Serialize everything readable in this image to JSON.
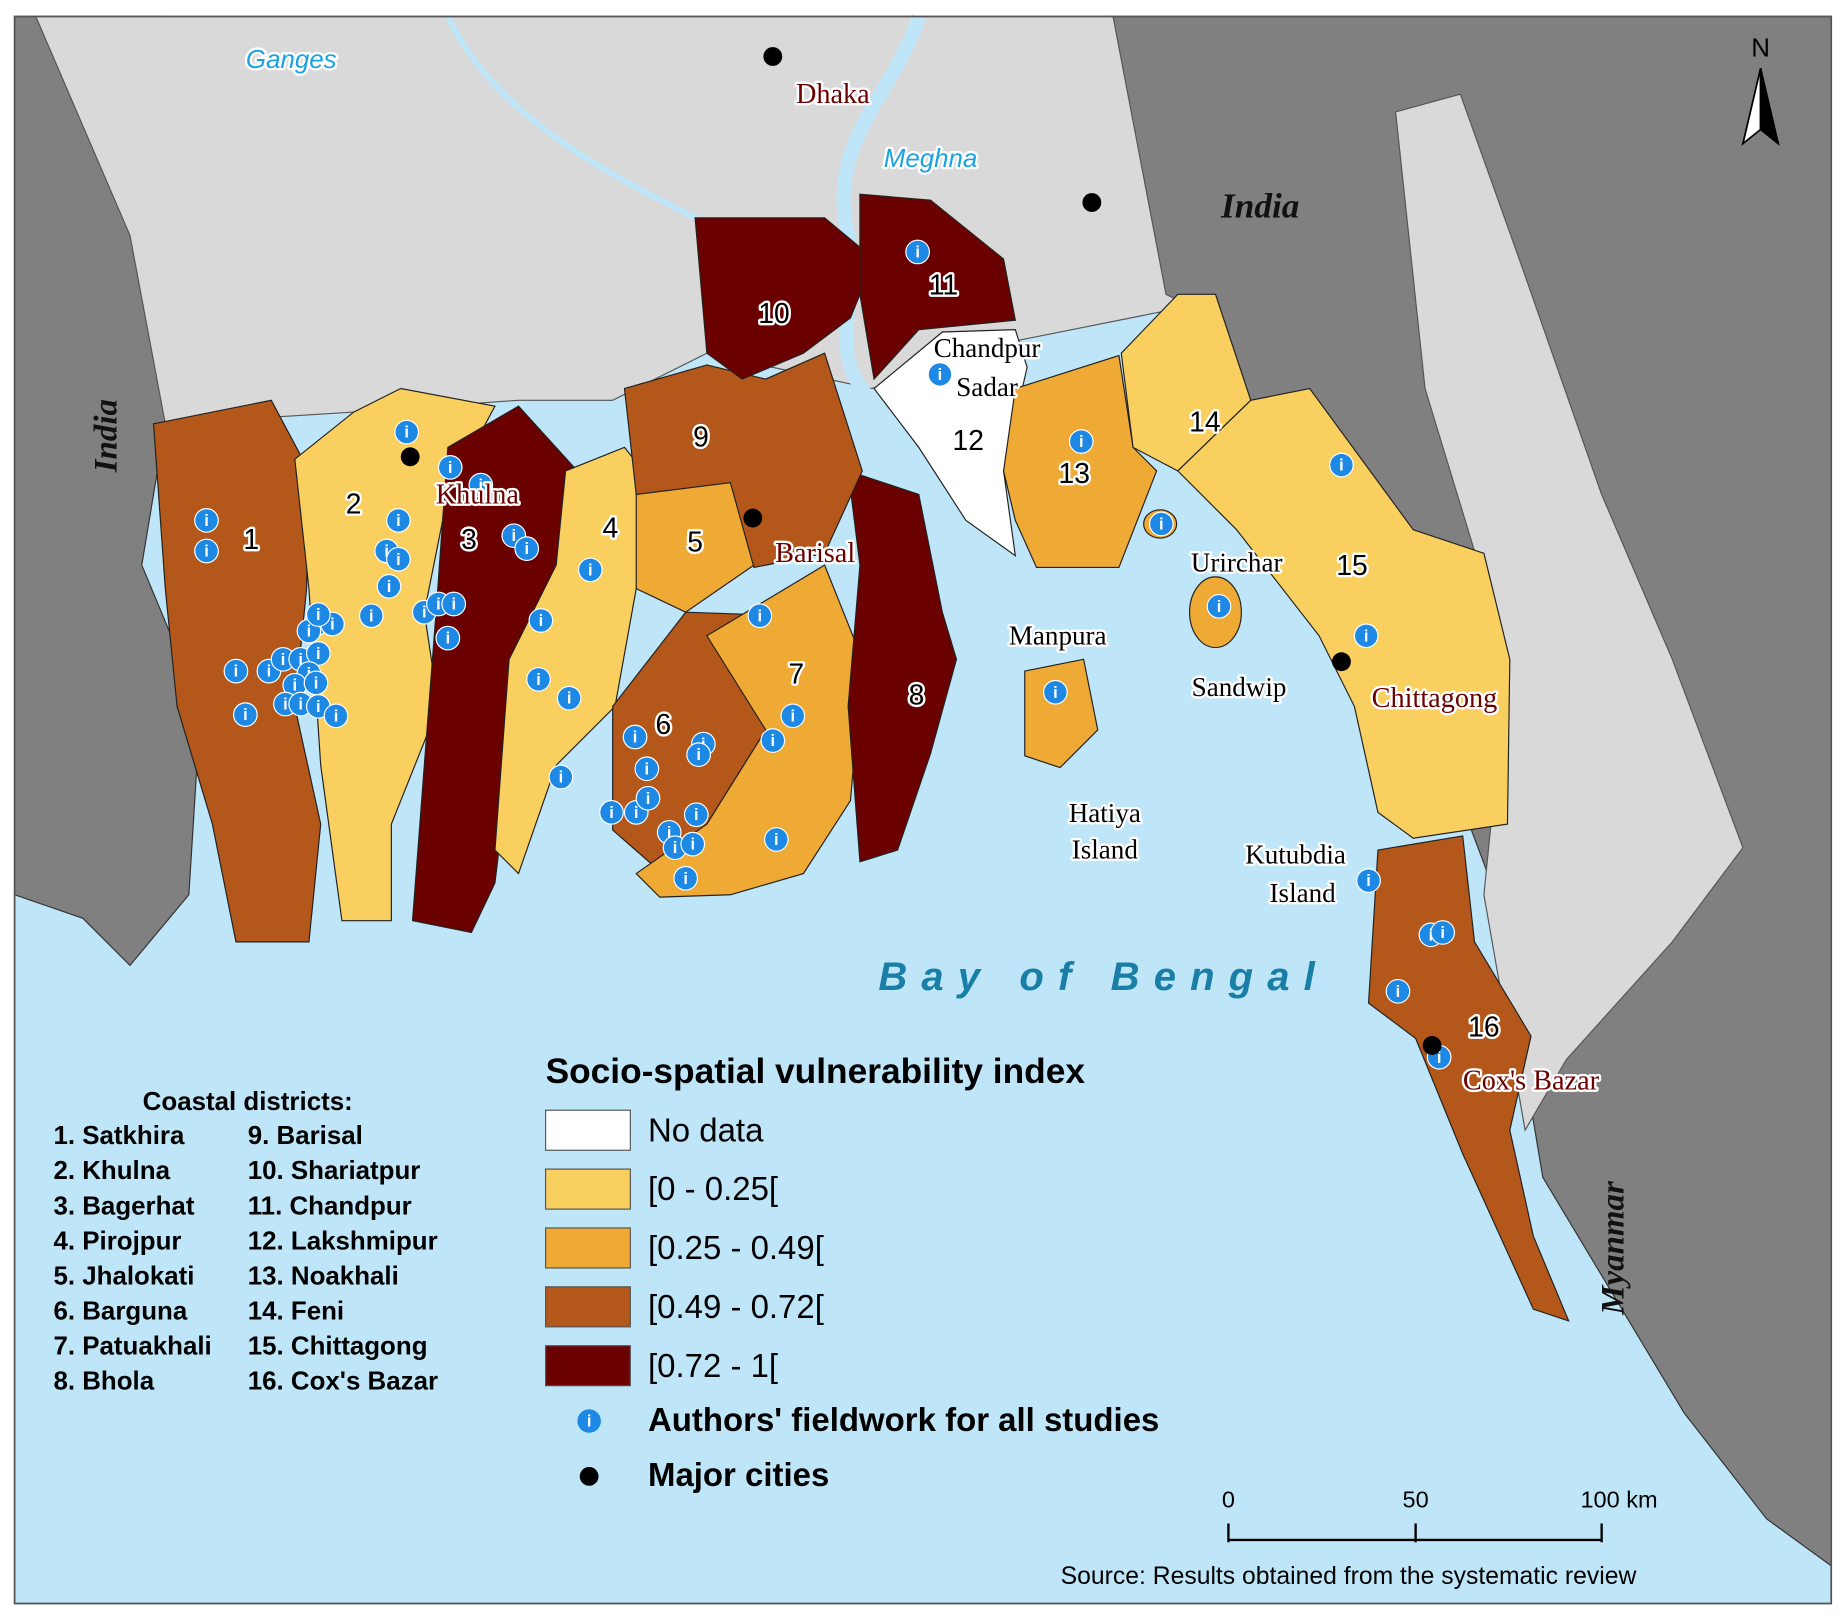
{
  "map": {
    "north_label": "N",
    "countries": [
      "India",
      "India",
      "Myanmar"
    ],
    "rivers": [
      "Ganges",
      "Meghna"
    ],
    "cities": [
      "Dhaka",
      "Khulna",
      "Barisal",
      "Chittagong",
      "Cox's Bazar"
    ],
    "places": [
      [
        "Chandpur",
        "Sadar"
      ],
      [
        "Manpura"
      ],
      [
        "Urirchar"
      ],
      [
        "Sandwip"
      ],
      [
        "Hatiya",
        "Island"
      ],
      [
        "Kutubdia",
        "Island"
      ]
    ],
    "sea_label": "Bay of Bengal",
    "marker_glyph": "i",
    "districts": [
      {
        "number": 1,
        "class": 3
      },
      {
        "number": 2,
        "class": 1
      },
      {
        "number": 3,
        "class": 4
      },
      {
        "number": 4,
        "class": 1
      },
      {
        "number": 5,
        "class": 2
      },
      {
        "number": 6,
        "class": 3
      },
      {
        "number": 7,
        "class": 2
      },
      {
        "number": 8,
        "class": 4
      },
      {
        "number": 9,
        "class": 3
      },
      {
        "number": 10,
        "class": 4
      },
      {
        "number": 11,
        "class": 4
      },
      {
        "number": 12,
        "class": 0
      },
      {
        "number": 13,
        "class": 2
      },
      {
        "number": 14,
        "class": 1
      },
      {
        "number": 15,
        "class": 1
      },
      {
        "number": 16,
        "class": 3
      }
    ]
  },
  "legend": {
    "title": "Socio-spatial vulnerability index",
    "classes": [
      {
        "label": "No data",
        "color": "#ffffff"
      },
      {
        "label": "[0 - 0.25[",
        "color": "#f9cf5f"
      },
      {
        "label": "[0.25 - 0.49[",
        "color": "#efa935"
      },
      {
        "label": "[0.49 - 0.72[",
        "color": "#b3571a"
      },
      {
        "label": "[0.72 - 1[",
        "color": "#6b0000"
      }
    ],
    "fieldwork": "Authors' fieldwork for all studies",
    "major_cities": "Major cities"
  },
  "district_list": {
    "title": "Coastal districts:",
    "items": [
      "1. Satkhira",
      "2. Khulna",
      "3. Bagerhat",
      "4. Pirojpur",
      "5. Jhalokati",
      "6. Barguna",
      "7. Patuakhali",
      "8. Bhola",
      "9. Barisal",
      "10. Shariatpur",
      "11. Chandpur",
      "12. Lakshmipur",
      "13. Noakhali",
      "14. Feni",
      "15. Chittagong",
      "16. Cox's Bazar"
    ]
  },
  "scale_bar": {
    "labels": [
      "0",
      "50",
      "100 km"
    ]
  },
  "source": "Source: Results obtained from the systematic review"
}
